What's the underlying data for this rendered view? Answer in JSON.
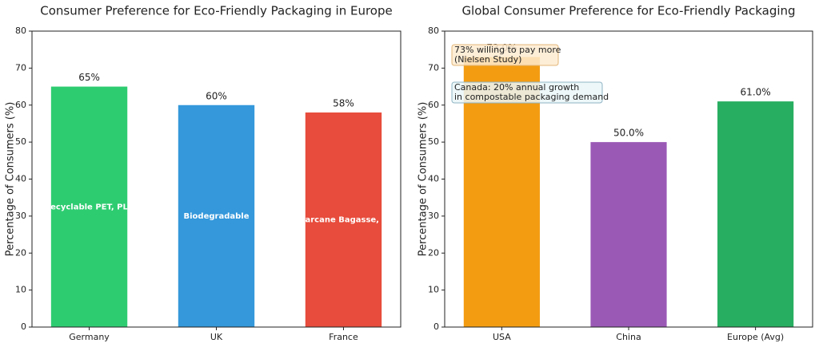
{
  "chart_data": [
    {
      "type": "bar",
      "title": "Consumer Preference for Eco-Friendly Packaging in Europe",
      "ylabel": "Percentage of Consumers (%)",
      "categories": [
        "Germany",
        "UK",
        "France"
      ],
      "values": [
        65,
        60,
        58
      ],
      "value_labels": [
        "65%",
        "60%",
        "58%"
      ],
      "inner_labels": [
        "Recyclable PET, PLA",
        "Biodegradable",
        "Sugarcane Bagasse, PLA"
      ],
      "colors": [
        "#2ecc71",
        "#3498db",
        "#e74c3c"
      ],
      "ylim": [
        0,
        80
      ],
      "yticks": [
        0,
        10,
        20,
        30,
        40,
        50,
        60,
        70,
        80
      ]
    },
    {
      "type": "bar",
      "title": "Global Consumer Preference for Eco-Friendly Packaging",
      "ylabel": "Percentage of Consumers (%)",
      "categories": [
        "USA",
        "China",
        "Europe (Avg)"
      ],
      "values": [
        73,
        50,
        61
      ],
      "value_labels": [
        "73.0%",
        "50.0%",
        "61.0%"
      ],
      "colors": [
        "#f39c12",
        "#9b59b6",
        "#27ae60"
      ],
      "ylim": [
        0,
        80
      ],
      "yticks": [
        0,
        10,
        20,
        30,
        40,
        50,
        60,
        70,
        80
      ],
      "annotations": [
        [
          "73% willing to pay more",
          "(Nielsen Study)"
        ],
        [
          "Canada: 20% annual growth",
          "in compostable packaging demand"
        ]
      ]
    }
  ]
}
